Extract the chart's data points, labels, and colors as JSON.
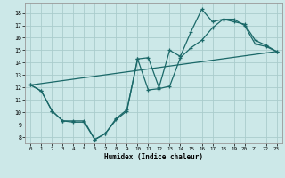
{
  "title": "",
  "xlabel": "Humidex (Indice chaleur)",
  "bg_color": "#cce8e8",
  "grid_color": "#aacccc",
  "line_color": "#1a6868",
  "xlim": [
    -0.5,
    23.5
  ],
  "ylim": [
    7.5,
    18.8
  ],
  "xticks": [
    0,
    1,
    2,
    3,
    4,
    5,
    6,
    7,
    8,
    9,
    10,
    11,
    12,
    13,
    14,
    15,
    16,
    17,
    18,
    19,
    20,
    21,
    22,
    23
  ],
  "yticks": [
    8,
    9,
    10,
    11,
    12,
    13,
    14,
    15,
    16,
    17,
    18
  ],
  "line1_x": [
    0,
    1,
    2,
    3,
    4,
    5,
    6,
    7,
    8,
    9,
    10,
    11,
    12,
    13,
    14,
    15,
    16,
    17,
    18,
    19,
    20,
    21,
    22,
    23
  ],
  "line1_y": [
    12.2,
    11.7,
    10.1,
    9.3,
    9.3,
    9.3,
    7.8,
    8.3,
    9.5,
    10.2,
    14.3,
    14.4,
    12.0,
    15.0,
    14.5,
    16.5,
    18.3,
    17.3,
    17.5,
    17.3,
    17.1,
    15.8,
    15.4,
    14.9
  ],
  "line2_x": [
    0,
    1,
    2,
    3,
    4,
    5,
    6,
    7,
    8,
    9,
    10,
    11,
    12,
    13,
    14,
    15,
    16,
    17,
    18,
    19,
    20,
    21,
    22,
    23
  ],
  "line2_y": [
    12.2,
    11.7,
    10.1,
    9.3,
    9.2,
    9.2,
    7.8,
    8.3,
    9.4,
    10.1,
    14.3,
    11.8,
    11.9,
    12.1,
    14.4,
    15.2,
    15.8,
    16.8,
    17.5,
    17.5,
    17.0,
    15.5,
    15.3,
    14.9
  ],
  "line3_x": [
    0,
    23
  ],
  "line3_y": [
    12.2,
    14.9
  ]
}
